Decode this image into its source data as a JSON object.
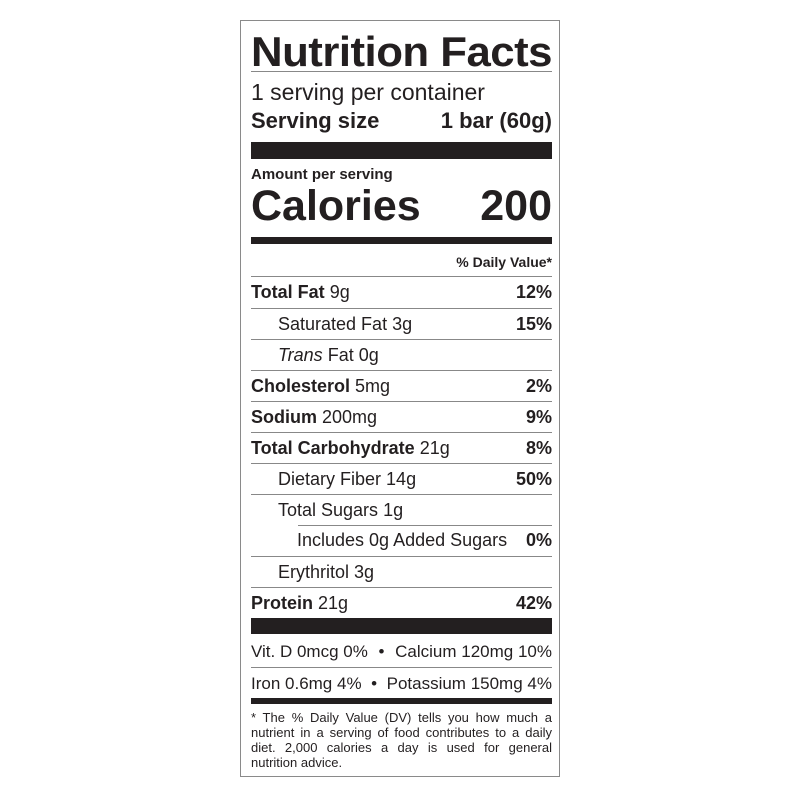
{
  "title": "Nutrition Facts",
  "servings_per_container": "1 serving per container",
  "serving_size": {
    "label": "Serving size",
    "value": "1 bar (60g)"
  },
  "amount_per_serving": "Amount per serving",
  "calories": {
    "label": "Calories",
    "value": "200"
  },
  "daily_value_header": "% Daily Value*",
  "nutrients": [
    {
      "name": "Total Fat",
      "amount": "9g",
      "dv": "12%"
    },
    {
      "name": "Saturated Fat",
      "amount": "3g",
      "dv": "15%"
    },
    {
      "name_italic": "Trans",
      "name": "Fat",
      "amount": "0g",
      "dv": ""
    },
    {
      "name": "Cholesterol",
      "amount": "5mg",
      "dv": "2%"
    },
    {
      "name": "Sodium",
      "amount": "200mg",
      "dv": "9%"
    },
    {
      "name": "Total Carbohydrate",
      "amount": "21g",
      "dv": "8%"
    },
    {
      "name": "Dietary Fiber",
      "amount": "14g",
      "dv": "50%"
    },
    {
      "name": "Total Sugars",
      "amount": "1g",
      "dv": ""
    },
    {
      "name": "Includes 0g Added Sugars",
      "amount": "",
      "dv": "0%"
    },
    {
      "name": "Erythritol",
      "amount": "3g",
      "dv": ""
    },
    {
      "name": "Protein",
      "amount": "21g",
      "dv": "42%"
    }
  ],
  "vitamins": [
    {
      "left": "Vit. D 0mcg 0%",
      "sep": "•",
      "right": "Calcium 120mg 10%"
    },
    {
      "left": "Iron 0.6mg 4%",
      "sep": "•",
      "right": "Potassium 150mg 4%"
    }
  ],
  "footnote": "* The % Daily Value (DV) tells you how much a nutrient in a serving of food contributes to a daily diet. 2,000 calories a day is used for general nutrition advice."
}
